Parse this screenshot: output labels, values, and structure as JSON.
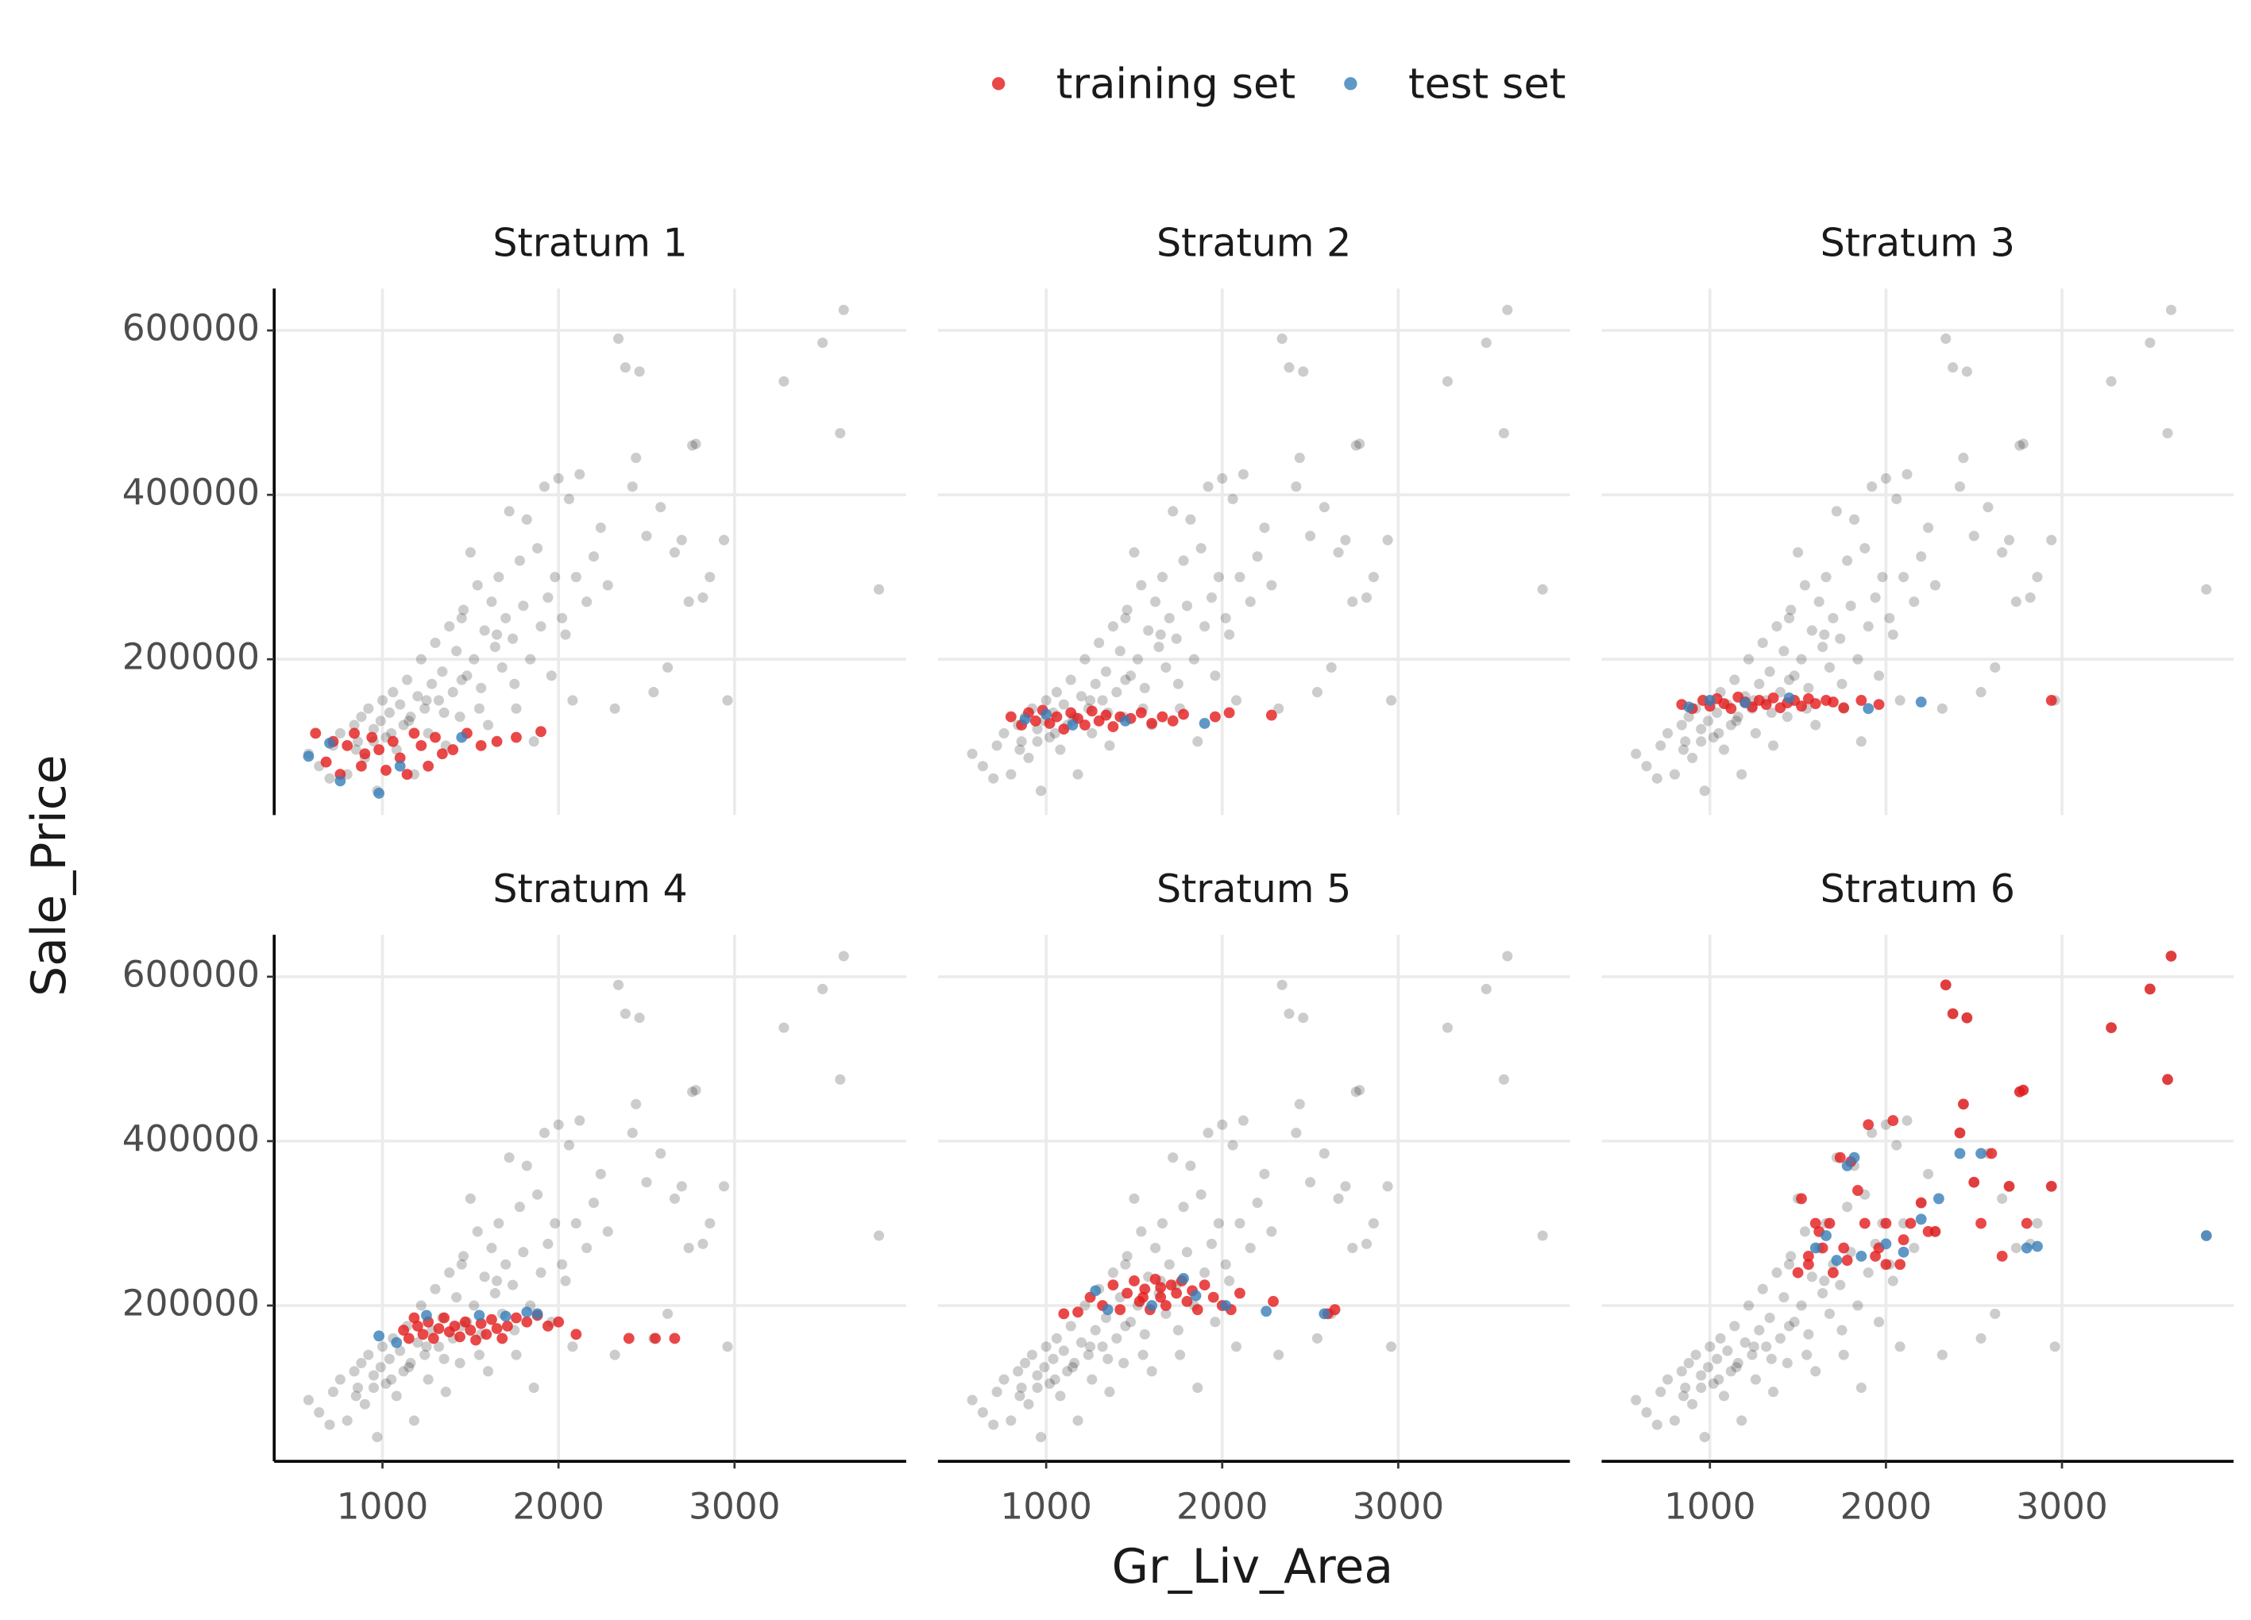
{
  "chart_data": {
    "type": "scatter",
    "x_label": "Gr_Liv_Area",
    "y_label": "Sale_Price",
    "xlim": [
      385,
      3975
    ],
    "ylim": [
      10500,
      651000
    ],
    "xticks": [
      1000,
      2000,
      3000
    ],
    "yticks": [
      200000,
      400000,
      600000
    ],
    "grid": true,
    "legend_position": "top",
    "legend": [
      {
        "name": "training set",
        "color": "#E41A1C"
      },
      {
        "name": "test set",
        "color": "#377EB8"
      }
    ],
    "background": {
      "color": "#000000",
      "x": [
        580,
        640,
        700,
        720,
        760,
        800,
        840,
        860,
        880,
        900,
        920,
        950,
        970,
        990,
        1000,
        1020,
        1040,
        1060,
        1080,
        1100,
        1120,
        1140,
        1160,
        1180,
        1200,
        1220,
        1240,
        1260,
        1280,
        1300,
        1320,
        1340,
        1360,
        1380,
        1400,
        1420,
        1440,
        1460,
        1480,
        1500,
        1520,
        1540,
        1560,
        1580,
        1600,
        1620,
        1640,
        1660,
        1680,
        1700,
        1720,
        1740,
        1760,
        1780,
        1800,
        1820,
        1840,
        1860,
        1880,
        1900,
        1920,
        1940,
        1960,
        1980,
        2000,
        2020,
        2040,
        2060,
        2080,
        2100,
        2120,
        2160,
        2200,
        2240,
        2280,
        2320,
        2340,
        2380,
        2420,
        2440,
        2460,
        2500,
        2540,
        2580,
        2620,
        2660,
        2700,
        2740,
        2760,
        2780,
        2820,
        2860,
        2940,
        2960,
        3280,
        3500,
        3600,
        3620,
        3820,
        1450,
        1050,
        1150,
        1250,
        1350,
        1450,
        1550,
        1650,
        1750,
        850,
        950
      ],
      "values": [
        85000,
        70000,
        55000,
        95000,
        110000,
        60000,
        120000,
        100000,
        130000,
        80000,
        140000,
        115000,
        40000,
        125000,
        150000,
        105000,
        135000,
        160000,
        90000,
        145000,
        120000,
        175000,
        130000,
        60000,
        155000,
        200000,
        140000,
        110000,
        170000,
        220000,
        150000,
        185000,
        95000,
        240000,
        160000,
        210000,
        130000,
        260000,
        180000,
        330000,
        200000,
        290000,
        165000,
        235000,
        120000,
        270000,
        215000,
        300000,
        190000,
        250000,
        380000,
        225000,
        140000,
        320000,
        265000,
        370000,
        200000,
        100000,
        335000,
        240000,
        410000,
        275000,
        180000,
        300000,
        420000,
        250000,
        230000,
        395000,
        150000,
        300000,
        425000,
        270000,
        325000,
        360000,
        290000,
        140000,
        590000,
        555000,
        410000,
        445000,
        550000,
        350000,
        160000,
        385000,
        190000,
        330000,
        345000,
        270000,
        460000,
        462000,
        275000,
        300000,
        345000,
        150000,
        538000,
        585000,
        475000,
        625000,
        285000,
        250000,
        110000,
        125000,
        150000,
        135000,
        175000,
        140000,
        230000,
        170000,
        90000,
        100000
      ]
    },
    "facets": [
      {
        "title": "Stratum 1",
        "series": [
          {
            "x": [
              620,
              680,
              720,
              760,
              800,
              840,
              880,
              900,
              940,
              980,
              1020,
              1060,
              1100,
              1140,
              1180,
              1220,
              1260,
              1300,
              1340,
              1400,
              1480,
              1560,
              1650,
              1760,
              1900
            ],
            "values": [
              110000,
              75000,
              100000,
              60000,
              95000,
              110000,
              70000,
              85000,
              105000,
              90000,
              65000,
              100000,
              80000,
              60000,
              110000,
              95000,
              70000,
              105000,
              85000,
              90000,
              110000,
              95000,
              100000,
              105000,
              112000
            ]
          },
          {
            "x": [
              580,
              700,
              760,
              980,
              1100,
              1450
            ],
            "values": [
              82000,
              98000,
              52000,
              37000,
              70000,
              105000
            ]
          }
        ]
      },
      {
        "title": "Stratum 2",
        "series": [
          {
            "x": [
              800,
              860,
              900,
              940,
              980,
              1020,
              1060,
              1100,
              1140,
              1180,
              1220,
              1260,
              1300,
              1340,
              1380,
              1420,
              1480,
              1540,
              1600,
              1660,
              1720,
              1780,
              1960,
              2040,
              2280
            ],
            "values": [
              130000,
              120000,
              135000,
              125000,
              138000,
              122000,
              130000,
              115000,
              135000,
              128000,
              120000,
              137000,
              125000,
              132000,
              118000,
              130000,
              128000,
              135000,
              122000,
              130000,
              125000,
              133000,
              130000,
              135000,
              132000
            ]
          },
          {
            "x": [
              880,
              1000,
              1150,
              1450,
              1900
            ],
            "values": [
              127000,
              133000,
              120000,
              125000,
              122000
            ]
          }
        ]
      },
      {
        "title": "Stratum 3",
        "series": [
          {
            "x": [
              840,
              900,
              960,
              1000,
              1040,
              1080,
              1120,
              1160,
              1200,
              1240,
              1280,
              1320,
              1360,
              1400,
              1440,
              1480,
              1520,
              1560,
              1600,
              1660,
              1700,
              1760,
              1860,
              1960,
              2940
            ],
            "values": [
              145000,
              140000,
              150000,
              143000,
              152000,
              146000,
              140000,
              154000,
              148000,
              142000,
              150000,
              145000,
              153000,
              141000,
              147000,
              150000,
              143000,
              152000,
              146000,
              150000,
              148000,
              141000,
              150000,
              145000,
              150000
            ]
          },
          {
            "x": [
              880,
              1000,
              1200,
              1450,
              1900,
              2200
            ],
            "values": [
              142000,
              150000,
              147000,
              153000,
              140000,
              148000
            ]
          }
        ]
      },
      {
        "title": "Stratum 4",
        "series": [
          {
            "x": [
              1120,
              1150,
              1180,
              1200,
              1230,
              1260,
              1290,
              1320,
              1350,
              1380,
              1410,
              1440,
              1470,
              1500,
              1530,
              1560,
              1590,
              1620,
              1650,
              1680,
              1710,
              1760,
              1820,
              1880,
              1940,
              2000,
              2100,
              2400,
              2550,
              2660
            ],
            "values": [
              170000,
              160000,
              185000,
              175000,
              165000,
              180000,
              160000,
              172000,
              185000,
              168000,
              175000,
              162000,
              180000,
              170000,
              158000,
              178000,
              165000,
              183000,
              172000,
              160000,
              175000,
              185000,
              180000,
              188000,
              175000,
              180000,
              165000,
              160000,
              160000,
              160000
            ]
          },
          {
            "x": [
              980,
              1080,
              1250,
              1550,
              1700,
              1820,
              1880
            ],
            "values": [
              163000,
              155000,
              188000,
              188000,
              187000,
              192000,
              190000
            ]
          }
        ]
      },
      {
        "title": "Stratum 5",
        "series": [
          {
            "x": [
              1100,
              1180,
              1250,
              1320,
              1380,
              1420,
              1460,
              1500,
              1530,
              1560,
              1590,
              1620,
              1650,
              1680,
              1710,
              1740,
              1770,
              1800,
              1830,
              1860,
              1900,
              1950,
              2000,
              2050,
              2100,
              2290,
              2600,
              2640,
              1550,
              1650
            ],
            "values": [
              190000,
              192000,
              210000,
              200000,
              225000,
              195000,
              215000,
              230000,
              205000,
              220000,
              195000,
              232000,
              210000,
              200000,
              225000,
              215000,
              230000,
              205000,
              218000,
              195000,
              225000,
              210000,
              200000,
              195000,
              215000,
              205000,
              190000,
              195000,
              210000,
              222000
            ]
          },
          {
            "x": [
              1280,
              1350,
              1600,
              1780,
              1850,
              2020,
              2250,
              2580
            ],
            "values": [
              218000,
              195000,
              200000,
              233000,
              212000,
              200000,
              193000,
              190000
            ]
          }
        ]
      },
      {
        "title": "Stratum 6",
        "series": [
          {
            "x": [
              1500,
              1520,
              1560,
              1600,
              1640,
              1680,
              1700,
              1740,
              1780,
              1800,
              1840,
              1880,
              1900,
              1940,
              1960,
              2000,
              2040,
              2080,
              2100,
              2140,
              2200,
              2240,
              2280,
              2340,
              2380,
              2420,
              2440,
              2460,
              2500,
              2540,
              2600,
              2660,
              2700,
              2760,
              2780,
              2800,
              2940,
              3280,
              3500,
              3600,
              3620,
              1560,
              1620,
              1760,
              2000
            ],
            "values": [
              240000,
              330000,
              260000,
              300000,
              270000,
              300000,
              240000,
              380000,
              255000,
              375000,
              340000,
              300000,
              420000,
              260000,
              270000,
              300000,
              425000,
              250000,
              280000,
              300000,
              325000,
              290000,
              290000,
              590000,
              555000,
              410000,
              445000,
              550000,
              350000,
              300000,
              385000,
              260000,
              345000,
              460000,
              462000,
              300000,
              345000,
              538000,
              585000,
              475000,
              625000,
              250000,
              290000,
              270000,
              250000
            ]
          },
          {
            "x": [
              1600,
              1660,
              1720,
              1780,
              1820,
              1860,
              2000,
              2100,
              2200,
              2300,
              2420,
              2540,
              2800,
              2860,
              3820
            ],
            "values": [
              270000,
              285000,
              255000,
              370000,
              380000,
              260000,
              275000,
              265000,
              305000,
              330000,
              385000,
              385000,
              270000,
              272000,
              285000
            ]
          }
        ]
      }
    ]
  }
}
